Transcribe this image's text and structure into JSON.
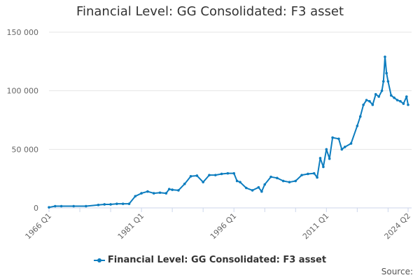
{
  "colors": {
    "series": "#0d7dbf",
    "grid": "#e6e6e6",
    "axis": "#ccd6eb"
  },
  "source_label": "Source:",
  "chart_data": {
    "type": "line",
    "title": "Financial Level: GG Consolidated: F3 asset",
    "xlabel": "",
    "ylabel": "",
    "ylim": [
      0,
      150000
    ],
    "yticks": [
      0,
      50000,
      100000,
      150000
    ],
    "ytick_labels": [
      "0",
      "50 000",
      "100 000",
      "150 000"
    ],
    "xticks": [
      1966.0,
      1981.0,
      1996.0,
      2011.0,
      2024.25
    ],
    "xtick_labels": [
      "1966 Q1",
      "1981 Q1",
      "1996 Q1",
      "2011 Q1",
      "2024 Q2"
    ],
    "xlim": [
      1966.0,
      2024.25
    ],
    "legend": "bottom-center",
    "grid": true,
    "series": [
      {
        "name": "Financial Level: GG Consolidated: F3 asset",
        "x": [
          1966.0,
          1967.0,
          1968.0,
          1970.0,
          1972.0,
          1974.0,
          1975.0,
          1976.0,
          1977.0,
          1978.0,
          1979.0,
          1980.0,
          1981.0,
          1982.0,
          1983.0,
          1984.0,
          1985.0,
          1985.5,
          1986.0,
          1987.0,
          1988.0,
          1989.0,
          1990.0,
          1991.0,
          1992.0,
          1993.0,
          1994.0,
          1995.0,
          1996.0,
          1996.5,
          1997.0,
          1998.0,
          1999.0,
          2000.0,
          2000.5,
          2001.0,
          2002.0,
          2003.0,
          2004.0,
          2005.0,
          2006.0,
          2007.0,
          2008.0,
          2009.0,
          2009.5,
          2010.0,
          2010.5,
          2011.0,
          2011.5,
          2012.0,
          2013.0,
          2013.5,
          2014.0,
          2015.0,
          2016.0,
          2016.5,
          2017.0,
          2017.5,
          2018.0,
          2018.5,
          2019.0,
          2019.5,
          2020.0,
          2020.25,
          2020.5,
          2020.75,
          2021.0,
          2021.5,
          2022.0,
          2022.5,
          2023.0,
          2023.5,
          2024.0,
          2024.25
        ],
        "values": [
          500,
          1500,
          1500,
          1500,
          1500,
          2500,
          3000,
          3000,
          3500,
          3500,
          3500,
          10000,
          12500,
          14000,
          12500,
          13000,
          12500,
          16000,
          15500,
          15000,
          20500,
          27000,
          27500,
          22000,
          28000,
          28000,
          29000,
          29500,
          29500,
          23000,
          22000,
          17000,
          15000,
          17500,
          14000,
          20000,
          26500,
          25500,
          23000,
          22000,
          23000,
          28000,
          29000,
          29500,
          26000,
          42500,
          35000,
          50000,
          42000,
          60000,
          59000,
          50000,
          52000,
          55000,
          70000,
          78000,
          88000,
          92000,
          91000,
          88000,
          97000,
          95000,
          100000,
          108000,
          129000,
          115000,
          108000,
          96000,
          94000,
          92000,
          91000,
          89000,
          95000,
          88000
        ]
      }
    ]
  }
}
